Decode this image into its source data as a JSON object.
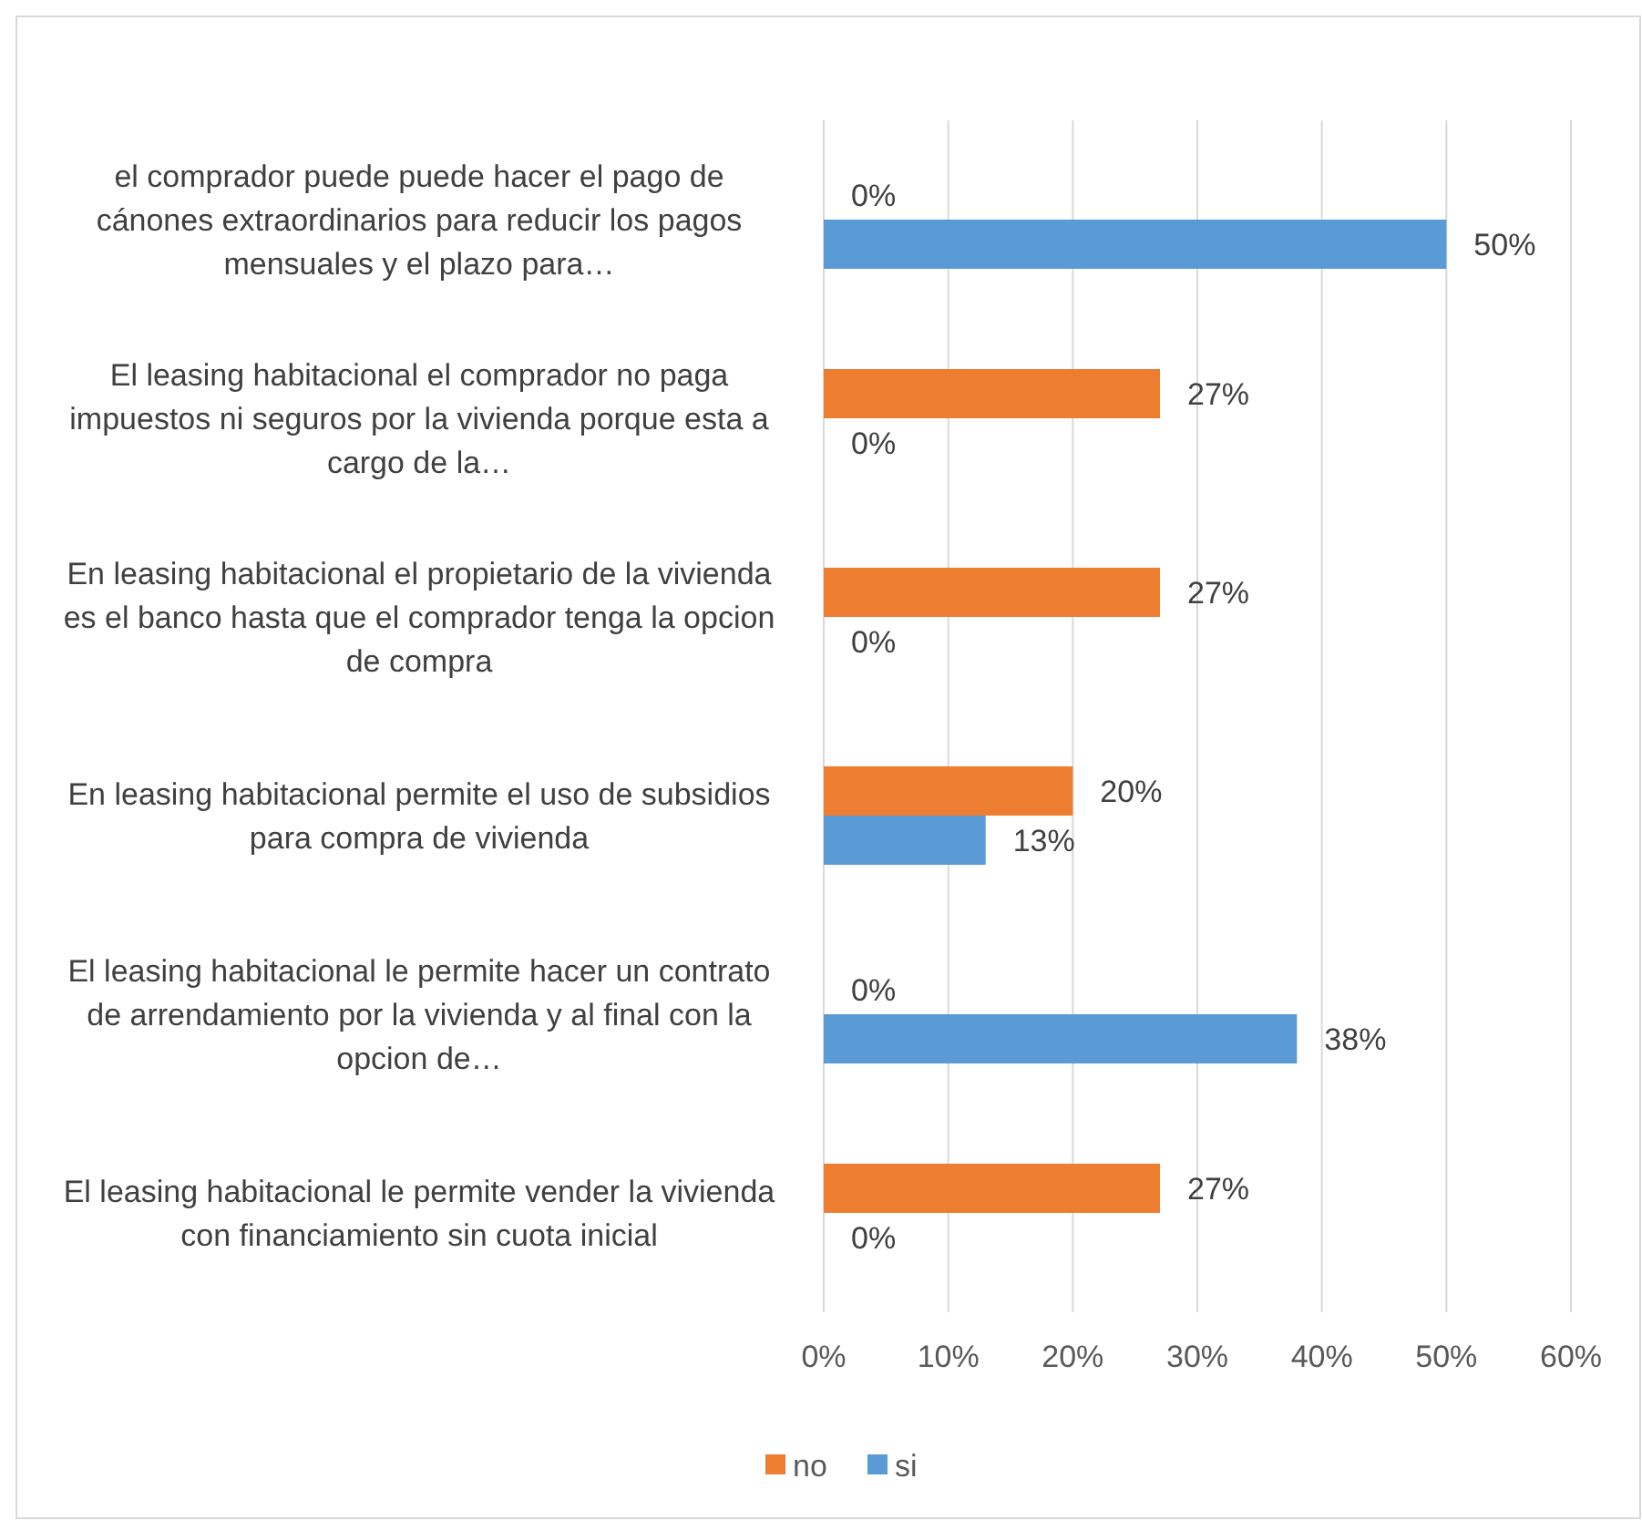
{
  "chart_data": {
    "type": "bar",
    "orientation": "horizontal",
    "categories": [
      "el comprador puede puede hacer el pago de cánones extraordinarios para reducir los pagos mensuales y el plazo para…",
      "El leasing habitacional el comprador no paga impuestos ni seguros por la vivienda porque esta a cargo de la…",
      "En leasing habitacional el propietario de la vivienda es el banco hasta que el comprador tenga la opcion de compra",
      "En leasing habitacional permite el uso de subsidios para compra de vivienda",
      "El leasing habitacional le permite hacer un contrato de arrendamiento por la vivienda y al final con la opcion de…",
      "El leasing habitacional le permite vender la vivienda con financiamiento sin cuota inicial"
    ],
    "series": [
      {
        "name": "no",
        "color": "#ed7d31",
        "values": [
          0,
          27,
          27,
          20,
          0,
          27
        ],
        "value_labels": [
          "0%",
          "27%",
          "27%",
          "20%",
          "0%",
          "27%"
        ]
      },
      {
        "name": "si",
        "color": "#5b9bd5",
        "values": [
          50,
          0,
          0,
          13,
          38,
          0
        ],
        "value_labels": [
          "50%",
          "0%",
          "0%",
          "13%",
          "38%",
          "0%"
        ]
      }
    ],
    "xlim": [
      0,
      60
    ],
    "xticks": [
      {
        "value": 0,
        "label": "0%"
      },
      {
        "value": 10,
        "label": "10%"
      },
      {
        "value": 20,
        "label": "20%"
      },
      {
        "value": 30,
        "label": "30%"
      },
      {
        "value": 40,
        "label": "40%"
      },
      {
        "value": 50,
        "label": "50%"
      },
      {
        "value": 60,
        "label": "60%"
      }
    ],
    "grid": "x",
    "legend": "bottom"
  }
}
